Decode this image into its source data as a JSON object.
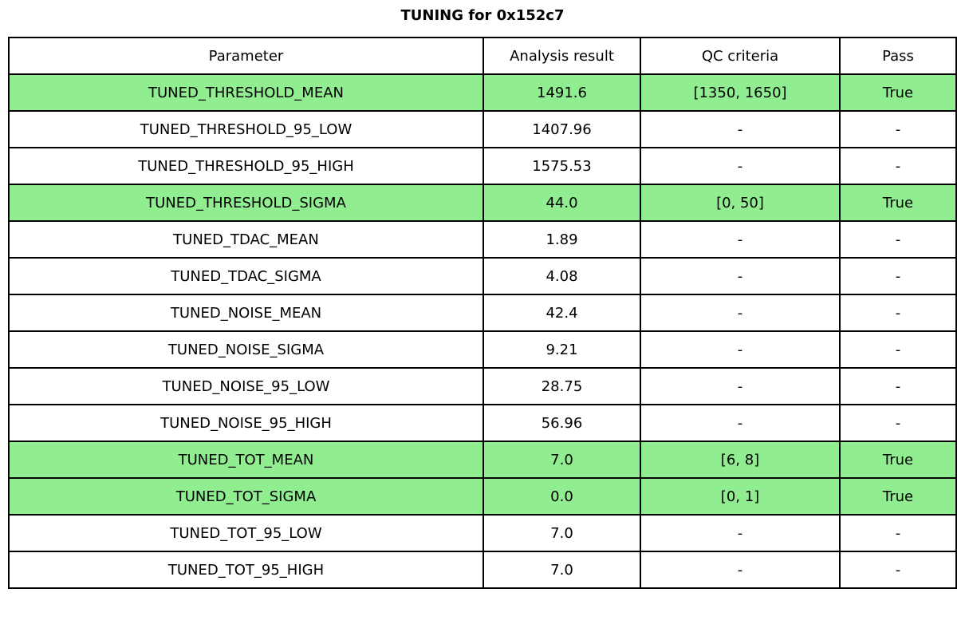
{
  "title": "TUNING for 0x152c7",
  "colors": {
    "pass_row_bg": "#90ee90",
    "border": "#000000",
    "background": "#ffffff",
    "text": "#000000"
  },
  "chart_data": {
    "type": "table",
    "title": "TUNING for 0x152c7",
    "columns": [
      "Parameter",
      "Analysis result",
      "QC criteria",
      "Pass"
    ],
    "fields": [
      "parameter",
      "analysis_result",
      "qc_criteria",
      "pass"
    ],
    "rows": [
      {
        "parameter": "TUNED_THRESHOLD_MEAN",
        "analysis_result": "1491.6",
        "qc_criteria": "[1350, 1650]",
        "pass": "True",
        "highlight": true
      },
      {
        "parameter": "TUNED_THRESHOLD_95_LOW",
        "analysis_result": "1407.96",
        "qc_criteria": "-",
        "pass": "-",
        "highlight": false
      },
      {
        "parameter": "TUNED_THRESHOLD_95_HIGH",
        "analysis_result": "1575.53",
        "qc_criteria": "-",
        "pass": "-",
        "highlight": false
      },
      {
        "parameter": "TUNED_THRESHOLD_SIGMA",
        "analysis_result": "44.0",
        "qc_criteria": "[0, 50]",
        "pass": "True",
        "highlight": true
      },
      {
        "parameter": "TUNED_TDAC_MEAN",
        "analysis_result": "1.89",
        "qc_criteria": "-",
        "pass": "-",
        "highlight": false
      },
      {
        "parameter": "TUNED_TDAC_SIGMA",
        "analysis_result": "4.08",
        "qc_criteria": "-",
        "pass": "-",
        "highlight": false
      },
      {
        "parameter": "TUNED_NOISE_MEAN",
        "analysis_result": "42.4",
        "qc_criteria": "-",
        "pass": "-",
        "highlight": false
      },
      {
        "parameter": "TUNED_NOISE_SIGMA",
        "analysis_result": "9.21",
        "qc_criteria": "-",
        "pass": "-",
        "highlight": false
      },
      {
        "parameter": "TUNED_NOISE_95_LOW",
        "analysis_result": "28.75",
        "qc_criteria": "-",
        "pass": "-",
        "highlight": false
      },
      {
        "parameter": "TUNED_NOISE_95_HIGH",
        "analysis_result": "56.96",
        "qc_criteria": "-",
        "pass": "-",
        "highlight": false
      },
      {
        "parameter": "TUNED_TOT_MEAN",
        "analysis_result": "7.0",
        "qc_criteria": "[6, 8]",
        "pass": "True",
        "highlight": true
      },
      {
        "parameter": "TUNED_TOT_SIGMA",
        "analysis_result": "0.0",
        "qc_criteria": "[0, 1]",
        "pass": "True",
        "highlight": true
      },
      {
        "parameter": "TUNED_TOT_95_LOW",
        "analysis_result": "7.0",
        "qc_criteria": "-",
        "pass": "-",
        "highlight": false
      },
      {
        "parameter": "TUNED_TOT_95_HIGH",
        "analysis_result": "7.0",
        "qc_criteria": "-",
        "pass": "-",
        "highlight": false
      }
    ],
    "highlighted_row_indices": [
      0,
      3,
      10,
      11
    ],
    "layout": {
      "n_data_rows": 14,
      "header": true,
      "grid": "full",
      "legend": "none"
    }
  }
}
